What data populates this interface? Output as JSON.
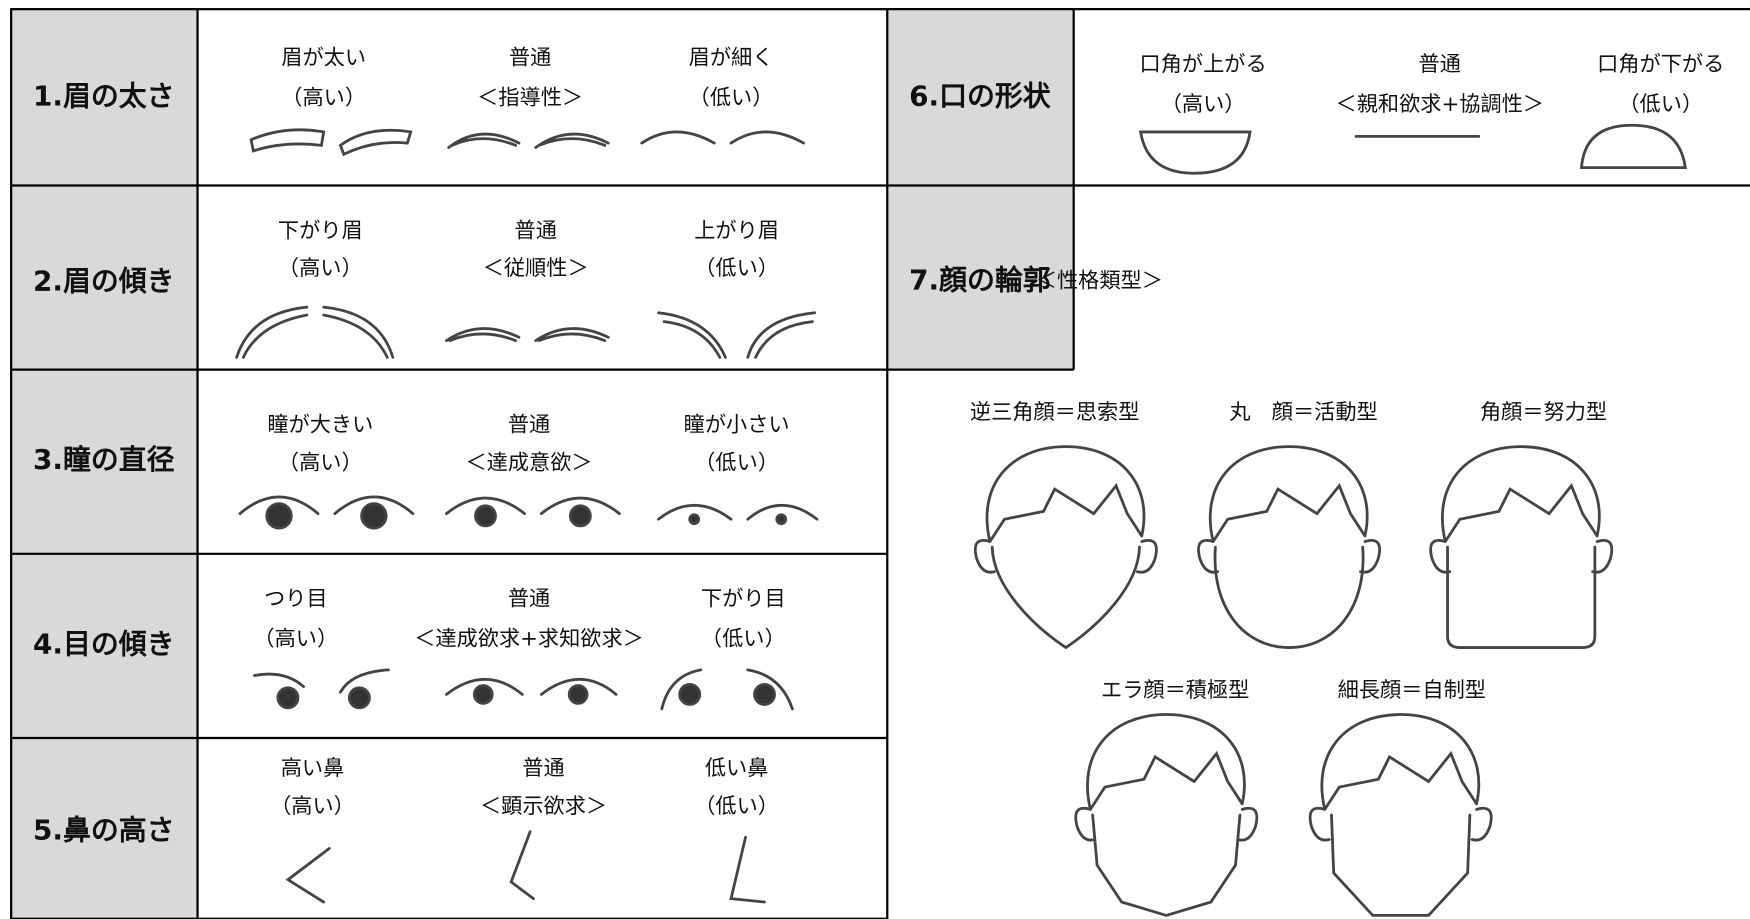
{
  "rows": [
    {
      "heading": "1.眉の太さ",
      "options": [
        [
          "眉が太い",
          "（高い）"
        ],
        [
          "普通",
          "＜指導性＞"
        ],
        [
          "眉が細く",
          "（低い）"
        ]
      ]
    },
    {
      "heading": "2.眉の傾き",
      "options": [
        [
          "下がり眉",
          "（高い）"
        ],
        [
          "普通",
          "＜従順性＞"
        ],
        [
          "上がり眉",
          "（低い）"
        ]
      ]
    },
    {
      "heading": "3.瞳の直径",
      "options": [
        [
          "瞳が大きい",
          "（高い）"
        ],
        [
          "普通",
          "＜達成意欲＞"
        ],
        [
          "瞳が小さい",
          "（低い）"
        ]
      ]
    },
    {
      "heading": "4.目の傾き",
      "options": [
        [
          "つり目",
          "（高い）"
        ],
        [
          "普通",
          "＜達成欲求+求知欲求＞"
        ],
        [
          "下がり目",
          "（低い）"
        ]
      ]
    },
    {
      "heading": "5.鼻の高さ",
      "options": [
        [
          "高い鼻",
          "（高い）"
        ],
        [
          "普通",
          "＜顕示欲求＞"
        ],
        [
          "低い鼻",
          "（低い）"
        ]
      ]
    },
    {
      "heading": "6.口の形状",
      "options": [
        [
          "口角が上がる",
          "（高い）"
        ],
        [
          "普通",
          "＜親和欲求+協調性＞"
        ],
        [
          "口角が下がる",
          "（低い）"
        ]
      ]
    }
  ],
  "face_section": {
    "heading": "7.顔の輪郭",
    "note": "＜性格類型＞",
    "types": [
      "逆三角顔＝思索型",
      "丸　顔＝活動型",
      "角顔＝努力型",
      "エラ顔＝積極型",
      "細長顔＝自制型"
    ]
  }
}
